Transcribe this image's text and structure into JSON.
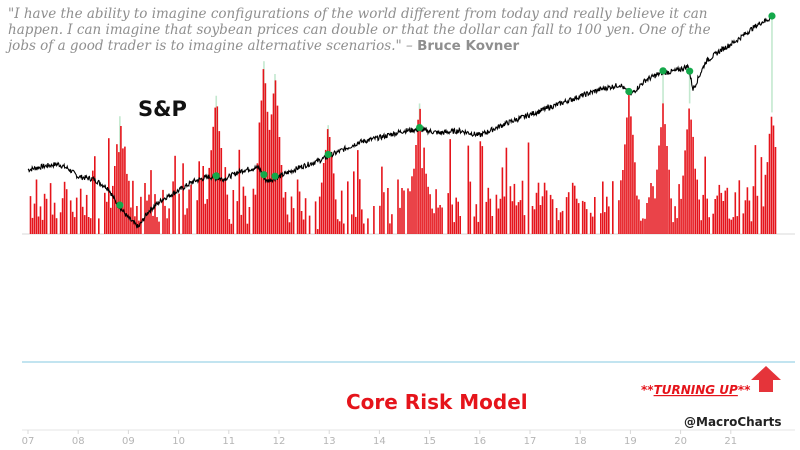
{
  "quote": {
    "text": "\"I have the ability to imagine configurations of the world different from today and really believe it can happen. I can imagine that soybean prices can double or that the dollar can fall to 100 yen. One of the jobs of a good trader is to imagine alternative scenarios.\" –",
    "author": "Bruce Kovner"
  },
  "chart_data": {
    "type": "line",
    "series": [
      {
        "name": "S&P",
        "color": "#000000",
        "points": [
          [
            7.0,
            0.28
          ],
          [
            7.3,
            0.31
          ],
          [
            7.6,
            0.33
          ],
          [
            7.8,
            0.29
          ],
          [
            8.0,
            0.22
          ],
          [
            8.3,
            0.2
          ],
          [
            8.6,
            0.12
          ],
          [
            8.75,
            0.0
          ],
          [
            9.0,
            -0.14
          ],
          [
            9.2,
            -0.22
          ],
          [
            9.4,
            -0.08
          ],
          [
            9.7,
            0.03
          ],
          [
            10.0,
            0.1
          ],
          [
            10.3,
            0.18
          ],
          [
            10.6,
            0.22
          ],
          [
            10.9,
            0.2
          ],
          [
            11.3,
            0.28
          ],
          [
            11.6,
            0.3
          ],
          [
            11.75,
            0.18
          ],
          [
            12.0,
            0.22
          ],
          [
            12.4,
            0.3
          ],
          [
            12.8,
            0.36
          ],
          [
            13.2,
            0.44
          ],
          [
            13.6,
            0.52
          ],
          [
            14.0,
            0.56
          ],
          [
            14.5,
            0.62
          ],
          [
            14.8,
            0.63
          ],
          [
            15.2,
            0.6
          ],
          [
            15.6,
            0.62
          ],
          [
            16.0,
            0.58
          ],
          [
            16.5,
            0.68
          ],
          [
            17.0,
            0.76
          ],
          [
            17.5,
            0.84
          ],
          [
            18.0,
            0.92
          ],
          [
            18.4,
            0.98
          ],
          [
            18.8,
            1.02
          ],
          [
            19.0,
            0.93
          ],
          [
            19.3,
            1.06
          ],
          [
            19.6,
            1.12
          ],
          [
            19.9,
            1.14
          ],
          [
            20.15,
            1.18
          ],
          [
            20.25,
            0.98
          ],
          [
            20.5,
            1.22
          ],
          [
            20.8,
            1.32
          ],
          [
            21.1,
            1.4
          ],
          [
            21.4,
            1.5
          ],
          [
            21.6,
            1.56
          ],
          [
            21.8,
            1.6
          ]
        ]
      },
      {
        "name": "Core Risk Model",
        "color": "#e5141b",
        "range": [
          -1,
          0
        ]
      }
    ],
    "signals": [
      8.83,
      10.75,
      11.7,
      11.92,
      12.98,
      14.8,
      18.97,
      19.65,
      20.18,
      21.82
    ],
    "troughs": [
      [
        8.83,
        -0.92
      ],
      [
        10.75,
        -1.08
      ],
      [
        11.7,
        -1.35
      ],
      [
        11.92,
        -1.25
      ],
      [
        12.98,
        -0.85
      ],
      [
        14.8,
        -1.02
      ],
      [
        18.97,
        -1.1
      ],
      [
        19.65,
        -1.02
      ],
      [
        20.18,
        -1.02
      ],
      [
        21.82,
        -0.95
      ]
    ],
    "threshold": -0.95,
    "x_ticks": [
      "07",
      "08",
      "09",
      "10",
      "11",
      "12",
      "13",
      "14",
      "15",
      "16",
      "17",
      "18",
      "19",
      "20",
      "21"
    ],
    "xlim": [
      7,
      22
    ],
    "labels": {
      "sp": "S&P",
      "model": "Core Risk Model",
      "turning_prefix": "**",
      "turning_main": "TURNING UP",
      "turning_suffix": "**",
      "handle": "@MacroCharts"
    },
    "colors": {
      "price": "#000000",
      "model": "#e5141b",
      "signal_dot": "#14a84a",
      "signal_line": "#c3e8cf",
      "threshold": "#9dd3e8",
      "arrow": "#e5343a"
    }
  }
}
